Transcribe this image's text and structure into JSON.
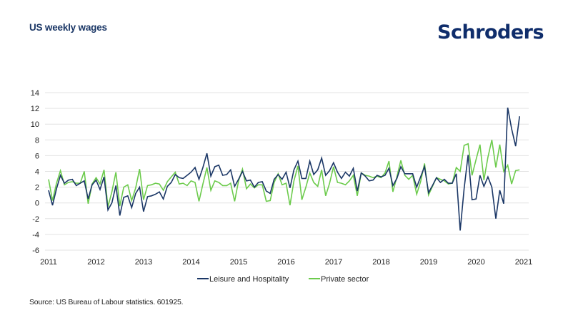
{
  "header": {
    "title": "US weekly wages",
    "logo": "Schroders"
  },
  "footer": {
    "source": "Source: US Bureau of Labour statistics. 601925."
  },
  "chart_data": {
    "type": "line",
    "title": "US weekly wages",
    "xlabel": "",
    "ylabel": "",
    "ylim": [
      -6,
      14
    ],
    "yticks": [
      14,
      12,
      10,
      8,
      6,
      4,
      2,
      0,
      -2,
      -4,
      -6
    ],
    "xlim": [
      2011,
      2021.1
    ],
    "xticks": [
      "2011",
      "2012",
      "2013",
      "2014",
      "2015",
      "2016",
      "2017",
      "2018",
      "2019",
      "2020",
      "2021"
    ],
    "grid": true,
    "legend_position": "bottom-center",
    "colors": {
      "Leisure and Hospitality": "#1b3766",
      "Private sector": "#6ccb4c"
    },
    "series": [
      {
        "name": "Leisure and Hospitality",
        "x_start": 2011.0,
        "x_step": 0.0833,
        "values": [
          1.6,
          -0.3,
          1.8,
          3.5,
          2.5,
          2.9,
          3.0,
          2.2,
          2.5,
          2.8,
          0.5,
          2.3,
          2.9,
          1.7,
          3.3,
          -0.9,
          0.0,
          2.2,
          -1.6,
          0.7,
          0.9,
          -0.6,
          1.2,
          2.0,
          -1.1,
          0.8,
          0.9,
          1.1,
          1.4,
          0.5,
          2.1,
          2.6,
          3.6,
          3.2,
          3.1,
          3.5,
          3.9,
          4.5,
          3.0,
          4.5,
          6.3,
          3.4,
          4.6,
          4.8,
          3.5,
          3.6,
          4.2,
          2.1,
          3.0,
          4.0,
          2.8,
          2.9,
          2.0,
          2.6,
          2.7,
          1.5,
          1.2,
          3.0,
          3.6,
          3.0,
          3.9,
          1.9,
          4.2,
          5.3,
          3.1,
          3.1,
          5.3,
          3.6,
          4.2,
          5.7,
          3.5,
          4.1,
          5.1,
          3.9,
          3.1,
          3.9,
          3.4,
          4.4,
          1.5,
          3.8,
          3.4,
          2.8,
          2.9,
          3.5,
          3.3,
          3.5,
          4.4,
          2.2,
          3.1,
          4.6,
          3.7,
          3.7,
          3.7,
          2.0,
          3.3,
          4.6,
          1.3,
          2.2,
          3.2,
          2.6,
          3.0,
          2.5,
          2.5,
          3.7,
          -3.5,
          1.8,
          6.1,
          0.4,
          0.5,
          3.5,
          2.1,
          3.3,
          2.0,
          -2.0,
          1.6,
          -0.1,
          12.1,
          9.4,
          7.2,
          11.0
        ]
      },
      {
        "name": "Private sector",
        "x_start": 2011.0,
        "x_step": 0.0833,
        "values": [
          3.0,
          0.3,
          2.5,
          4.1,
          2.3,
          2.6,
          2.7,
          2.5,
          2.5,
          4.0,
          -0.1,
          2.4,
          3.2,
          2.4,
          4.2,
          -0.5,
          1.4,
          3.9,
          -0.4,
          2.0,
          2.3,
          0.3,
          1.9,
          4.3,
          0.4,
          2.2,
          2.3,
          2.5,
          2.4,
          1.6,
          2.7,
          3.3,
          3.9,
          2.4,
          2.5,
          2.2,
          2.8,
          2.6,
          0.2,
          2.4,
          4.5,
          1.6,
          2.8,
          2.6,
          2.2,
          2.2,
          2.5,
          0.2,
          2.8,
          4.3,
          1.8,
          2.4,
          1.9,
          2.3,
          2.3,
          0.2,
          0.3,
          2.6,
          3.7,
          2.3,
          2.5,
          -0.3,
          2.8,
          4.7,
          0.4,
          2.0,
          3.8,
          2.6,
          2.1,
          4.2,
          0.9,
          2.5,
          4.6,
          2.6,
          2.5,
          2.3,
          2.8,
          3.5,
          0.9,
          3.8,
          3.5,
          3.4,
          3.2,
          3.4,
          3.2,
          3.8,
          5.3,
          1.4,
          3.3,
          5.4,
          3.5,
          3.0,
          3.5,
          1.1,
          2.7,
          5.0,
          1.0,
          2.1,
          3.2,
          3.0,
          2.8,
          2.4,
          2.5,
          4.5,
          4.0,
          7.3,
          7.5,
          3.5,
          5.5,
          7.4,
          2.9,
          5.8,
          8.0,
          4.5,
          7.4,
          4.0,
          4.8,
          2.4,
          4.1,
          4.2
        ]
      }
    ]
  }
}
